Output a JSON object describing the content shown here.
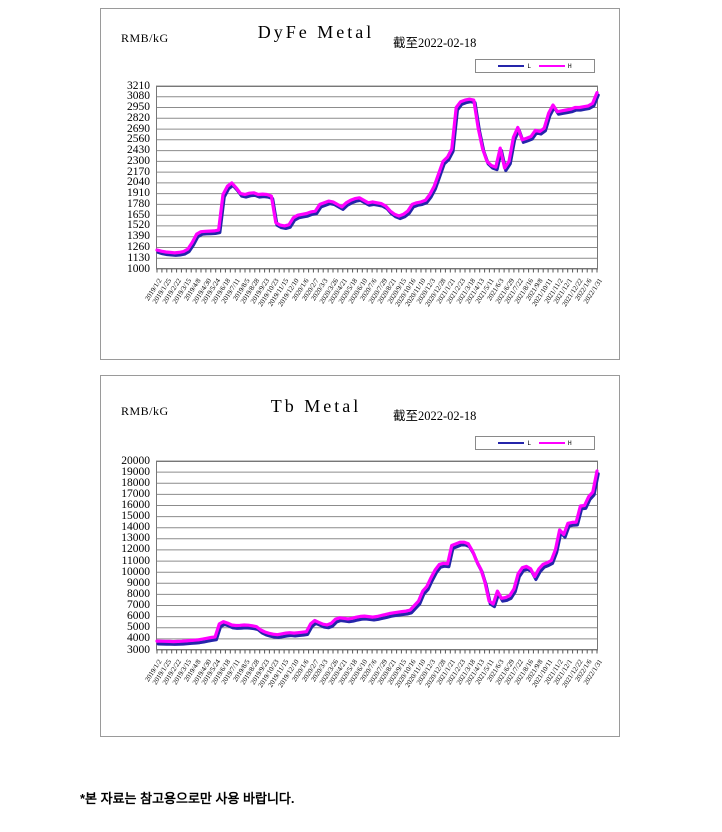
{
  "page": {
    "footer_note": "*본 자료는 참고용으로만 사용 바랍니다."
  },
  "chart_data": [
    {
      "type": "line",
      "title": "DyFe Metal",
      "subtitle": "截至2022-02-18",
      "ylabel": "RMB/kG",
      "ylim": [
        1000,
        3210
      ],
      "y_tick_step": 130,
      "grid": "horizontal",
      "legend_position": "top-right",
      "y_ticks": [
        3210,
        3080,
        2950,
        2820,
        2690,
        2560,
        2430,
        2300,
        2170,
        2040,
        1910,
        1780,
        1650,
        1520,
        1390,
        1260,
        1130,
        1000
      ],
      "x_labels": [
        "2019/1/2",
        "2019/1/25",
        "2019/2/22",
        "2019/3/15",
        "2019/4/8",
        "2019/4/30",
        "2019/5/24",
        "2019/6/18",
        "2019/7/11",
        "2019/8/5",
        "2019/8/28",
        "2019/9/23",
        "2019/10/23",
        "2019/11/15",
        "2019/12/10",
        "2020/1/6",
        "2020/2/7",
        "2020/3/3",
        "2020/3/26",
        "2020/4/21",
        "2020/5/18",
        "2020/6/10",
        "2020/7/6",
        "2020/7/29",
        "2020/8/21",
        "2020/9/15",
        "2020/10/16",
        "2020/11/10",
        "2020/12/3",
        "2020/12/28",
        "2021/1/21",
        "2021/2/23",
        "2021/3/18",
        "2021/4/13",
        "2021/5/11",
        "2021/6/3",
        "2021/6/29",
        "2021/7/22",
        "2021/8/16",
        "2021/9/8",
        "2021/10/11",
        "2021/11/2",
        "2021/12/1",
        "2021/12/22",
        "2022/1/6",
        "2022/1/31"
      ],
      "legend": [
        {
          "label": "L",
          "color": "#2525aa"
        },
        {
          "label": "H",
          "color": "#ff00ff"
        }
      ],
      "l_gap": 30,
      "h_values": [
        1230,
        1215,
        1205,
        1200,
        1195,
        1200,
        1210,
        1240,
        1320,
        1420,
        1450,
        1455,
        1458,
        1460,
        1470,
        1900,
        2000,
        2040,
        1980,
        1910,
        1900,
        1915,
        1920,
        1900,
        1905,
        1900,
        1880,
        1560,
        1530,
        1520,
        1535,
        1620,
        1650,
        1660,
        1670,
        1690,
        1700,
        1780,
        1800,
        1820,
        1810,
        1780,
        1750,
        1800,
        1830,
        1850,
        1860,
        1830,
        1800,
        1810,
        1800,
        1790,
        1760,
        1700,
        1660,
        1640,
        1660,
        1700,
        1780,
        1800,
        1810,
        1830,
        1900,
        2000,
        2150,
        2300,
        2350,
        2450,
        2950,
        3020,
        3040,
        3050,
        3040,
        2700,
        2450,
        2300,
        2250,
        2230,
        2460,
        2220,
        2300,
        2590,
        2710,
        2560,
        2580,
        2600,
        2675,
        2660,
        2700,
        2880,
        2980,
        2900,
        2910,
        2920,
        2930,
        2950,
        2950,
        2960,
        2970,
        3000,
        3130
      ]
    },
    {
      "type": "line",
      "title": "Tb Metal",
      "subtitle": "截至2022-02-18",
      "ylabel": "RMB/kG",
      "ylim": [
        3000,
        20000
      ],
      "y_tick_step": 1000,
      "grid": "horizontal",
      "legend_position": "top-right",
      "y_ticks": [
        20000,
        19000,
        18000,
        17000,
        16000,
        15000,
        14000,
        13000,
        12000,
        11000,
        10000,
        9000,
        8000,
        7000,
        6000,
        5000,
        4000,
        3000
      ],
      "x_labels": [
        "2019/1/2",
        "2019/1/25",
        "2019/2/22",
        "2019/3/15",
        "2019/4/8",
        "2019/4/30",
        "2019/5/24",
        "2019/6/18",
        "2019/7/11",
        "2019/8/5",
        "2019/8/28",
        "2019/9/23",
        "2019/10/23",
        "2019/11/15",
        "2019/12/10",
        "2020/1/6",
        "2020/2/7",
        "2020/3/3",
        "2020/3/26",
        "2020/4/21",
        "2020/5/18",
        "2020/6/10",
        "2020/7/6",
        "2020/7/29",
        "2020/8/21",
        "2020/9/15",
        "2020/10/16",
        "2020/11/10",
        "2020/12/3",
        "2020/12/28",
        "2021/1/21",
        "2021/2/23",
        "2021/3/18",
        "2021/4/13",
        "2021/5/11",
        "2021/6/3",
        "2021/6/29",
        "2021/7/22",
        "2021/8/16",
        "2021/9/8",
        "2021/10/11",
        "2021/11/2",
        "2021/12/1",
        "2021/12/22",
        "2022/1/6",
        "2022/1/31"
      ],
      "legend": [
        {
          "label": "L",
          "color": "#2525aa"
        },
        {
          "label": "H",
          "color": "#ff00ff"
        }
      ],
      "l_gap": 250,
      "h_values": [
        3800,
        3790,
        3780,
        3770,
        3760,
        3770,
        3790,
        3820,
        3850,
        3880,
        3920,
        3980,
        4050,
        4120,
        4180,
        5350,
        5550,
        5420,
        5250,
        5200,
        5220,
        5250,
        5230,
        5180,
        5100,
        4800,
        4620,
        4500,
        4420,
        4380,
        4450,
        4520,
        4560,
        4520,
        4560,
        4600,
        4650,
        5350,
        5650,
        5480,
        5320,
        5260,
        5400,
        5780,
        5900,
        5850,
        5800,
        5850,
        5950,
        6020,
        6050,
        6000,
        5960,
        6010,
        6100,
        6180,
        6280,
        6350,
        6400,
        6450,
        6500,
        6600,
        7000,
        7400,
        8300,
        8700,
        9500,
        10200,
        10700,
        10800,
        10750,
        12400,
        12550,
        12700,
        12700,
        12550,
        11900,
        11000,
        10280,
        9100,
        7400,
        7150,
        8300,
        7650,
        7720,
        7900,
        8500,
        9850,
        10400,
        10520,
        10300,
        9600,
        10300,
        10700,
        10850,
        11050,
        12050,
        13800,
        13400,
        14400,
        14480,
        14500,
        15950,
        16000,
        16800,
        17200,
        19100
      ]
    }
  ],
  "style": {
    "gridline_color": "#8c8c8c",
    "plot_border_color": "#777777",
    "line_color_h": "#ff00ff",
    "line_color_l": "#2525aa"
  }
}
